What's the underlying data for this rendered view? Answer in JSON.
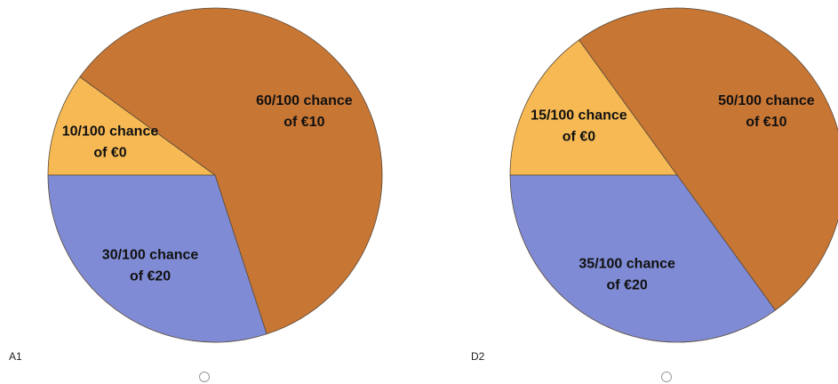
{
  "chart_data": [
    {
      "type": "pie",
      "label": "A1",
      "values": [
        10,
        60,
        30
      ],
      "value_labels": [
        [
          "10/100 chance",
          "of €0"
        ],
        [
          "60/100 chance",
          "of €10"
        ],
        [
          "30/100 chance",
          "of €20"
        ]
      ],
      "colors": [
        "#f6b954",
        "#c87634",
        "#7f8bd4"
      ]
    },
    {
      "type": "pie",
      "label": "D2",
      "values": [
        15,
        50,
        35
      ],
      "value_labels": [
        [
          "15/100 chance",
          "of €0"
        ],
        [
          "50/100 chance",
          "of €10"
        ],
        [
          "35/100 chance",
          "of €20"
        ]
      ],
      "colors": [
        "#f6b954",
        "#c87634",
        "#7f8bd4"
      ]
    }
  ]
}
